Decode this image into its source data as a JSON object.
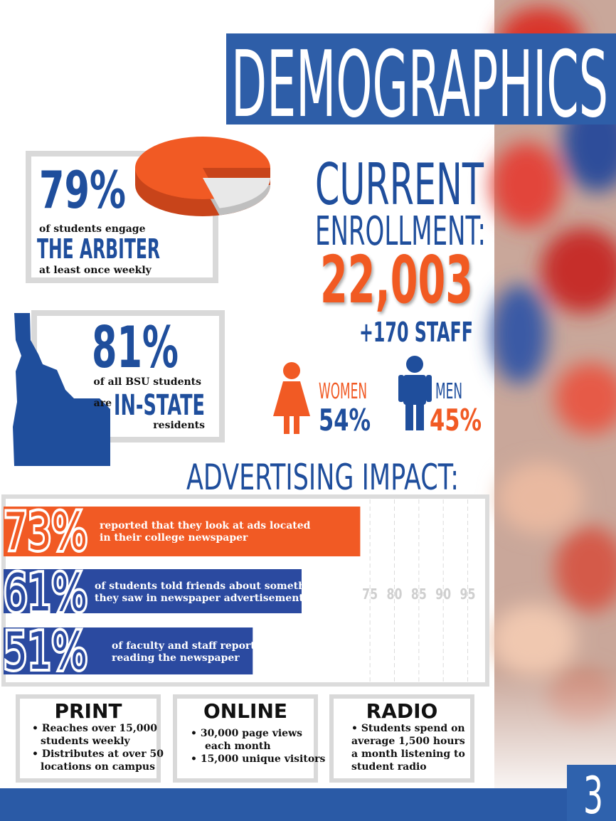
{
  "title": "DEMOGRAPHICS",
  "engagement": {
    "value": 79,
    "label": "79%",
    "lines": [
      "of students engage",
      "THE ARBITER",
      "at least once weekly"
    ]
  },
  "in_state": {
    "label": "81%",
    "lines": [
      "of all BSU students",
      "are",
      "IN-STATE",
      "residents"
    ]
  },
  "enrollment": {
    "heading": [
      "CURRENT",
      "ENROLLMENT:"
    ],
    "total": "22,003",
    "staff": "+170 STAFF"
  },
  "gender": [
    {
      "name": "WOMEN",
      "label": "54%"
    },
    {
      "name": "MEN",
      "label": "45%"
    }
  ],
  "impact": {
    "title": "ADVERTISING IMPACT:",
    "xlim": [
      0,
      99
    ],
    "xticks": [
      75,
      80,
      85,
      90,
      95
    ],
    "items": [
      {
        "value": 73,
        "label": "73%",
        "color": "#f15a24",
        "lines": [
          "reported that they look at ads located",
          "in their college newspaper"
        ]
      },
      {
        "value": 61,
        "label": "61%",
        "color": "#2b4aa0",
        "lines": [
          "of students told friends about something",
          "they saw in newspaper advertisements"
        ]
      },
      {
        "value": 51,
        "label": "51%",
        "color": "#2b4aa0",
        "lines": [
          "of faculty and staff report",
          "reading the newspaper"
        ]
      }
    ]
  },
  "media": [
    {
      "title": "PRINT",
      "lines": [
        "• Reaches over 15,000",
        "students weekly",
        "• Distributes at over 50",
        "locations on campus"
      ]
    },
    {
      "title": "ONLINE",
      "lines": [
        "• 30,000 page views",
        "each month",
        "• 15,000 unique visitors"
      ]
    },
    {
      "title": "RADIO",
      "lines": [
        "• Students spend on",
        "average 1,500 hours",
        "a month listening to",
        "student radio"
      ]
    }
  ],
  "page_number": "3"
}
